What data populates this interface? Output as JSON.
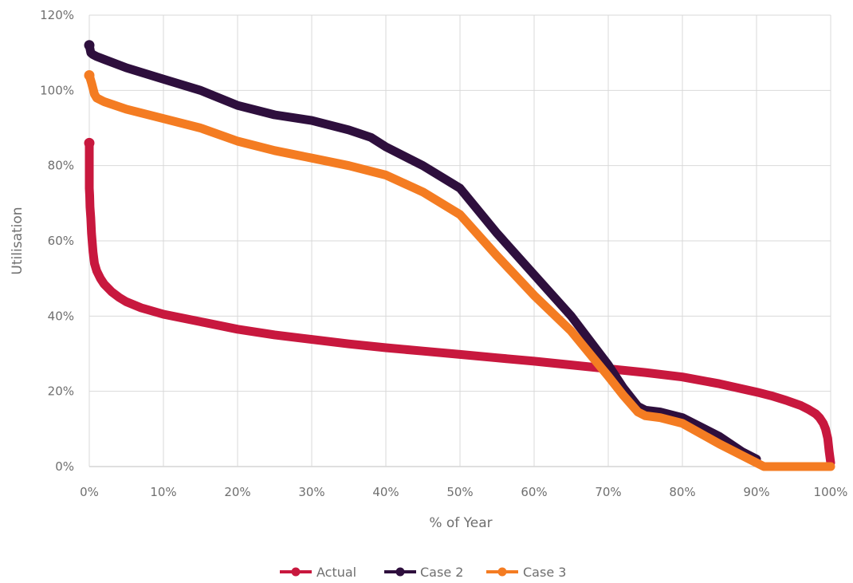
{
  "chart_data": {
    "type": "line",
    "xlabel": "% of Year",
    "ylabel": "Utilisation",
    "xlim": [
      0,
      100
    ],
    "ylim": [
      0,
      120
    ],
    "x_ticks": [
      "0%",
      "10%",
      "20%",
      "30%",
      "40%",
      "50%",
      "60%",
      "70%",
      "80%",
      "90%",
      "100%"
    ],
    "y_ticks": [
      "0%",
      "20%",
      "40%",
      "60%",
      "80%",
      "100%",
      "120%"
    ],
    "grid": "both",
    "legend_position": "bottom",
    "series": [
      {
        "name": "Actual",
        "color": "#c8183e",
        "x": [
          0,
          0,
          0,
          0,
          0.05,
          0.1,
          0.2,
          0.3,
          0.5,
          0.7,
          1,
          1.5,
          2,
          3,
          4,
          5,
          7,
          10,
          15,
          20,
          25,
          30,
          35,
          40,
          45,
          50,
          55,
          60,
          65,
          70,
          75,
          80,
          85,
          90,
          92,
          94,
          96,
          97,
          98,
          98.5,
          99,
          99.3,
          99.6,
          99.8,
          100
        ],
        "y": [
          86,
          80,
          76,
          74,
          72,
          69,
          66,
          62,
          57,
          54,
          52,
          50,
          48.5,
          46.5,
          45,
          43.8,
          42.2,
          40.5,
          38.5,
          36.5,
          35,
          33.8,
          32.6,
          31.6,
          30.7,
          29.8,
          28.9,
          28,
          27,
          26,
          25,
          23.8,
          22,
          19.8,
          18.8,
          17.6,
          16.2,
          15.2,
          14,
          13,
          11.5,
          10,
          7.5,
          4,
          1
        ]
      },
      {
        "name": "Case 2",
        "color": "#2e0f3d",
        "x": [
          0,
          0.2,
          0.5,
          1,
          5,
          10,
          15,
          20,
          25,
          30,
          35,
          38,
          40,
          45,
          50,
          55,
          60,
          65,
          70,
          72,
          74,
          75,
          77,
          80,
          85,
          88,
          90
        ],
        "y": [
          112,
          110,
          109.5,
          109,
          106,
          103,
          100,
          96,
          93.5,
          92,
          89.5,
          87.5,
          85,
          80,
          74,
          62,
          51,
          40,
          27,
          21,
          16,
          15,
          14.5,
          13,
          8,
          4,
          2
        ]
      },
      {
        "name": "Case 3",
        "color": "#f47c22",
        "x": [
          0,
          0.3,
          0.7,
          1,
          2,
          5,
          10,
          15,
          20,
          25,
          30,
          35,
          40,
          45,
          50,
          55,
          60,
          65,
          70,
          72,
          74,
          75,
          77,
          80,
          85,
          88,
          90,
          91,
          95,
          100
        ],
        "y": [
          104,
          102,
          99,
          98,
          97,
          95,
          92.5,
          90,
          86.5,
          84,
          82,
          80,
          77.5,
          73,
          67,
          56,
          45.5,
          36,
          24,
          19,
          14.5,
          13.5,
          13,
          11.5,
          6,
          3,
          1,
          0,
          0,
          0
        ]
      }
    ]
  }
}
